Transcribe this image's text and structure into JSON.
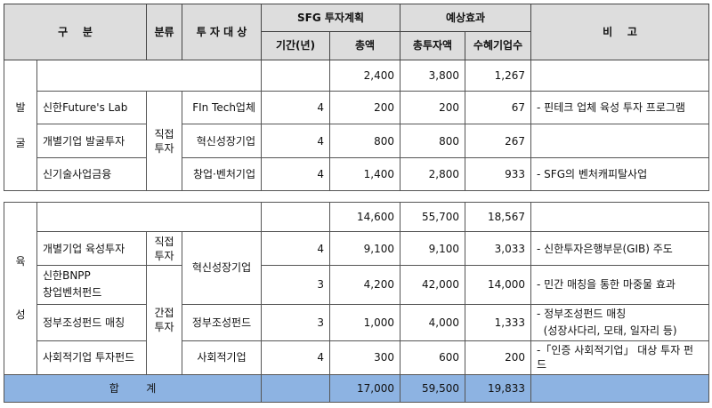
{
  "header": {
    "category": "구    분",
    "class": "분류",
    "target": "투 자 대 상",
    "plan": "SFG 투자계획",
    "effect": "예상효과",
    "note": "비    고",
    "period": "기간(년)",
    "total_amount": "총액",
    "total_invest": "총투자액",
    "beneficiaries": "수혜기업수"
  },
  "discover": {
    "section_chars": [
      "발",
      "굴"
    ],
    "subtotal": {
      "total_amount": "2,400",
      "total_invest": "3,800",
      "beneficiaries": "1,267"
    },
    "class_label": "직접\n투자",
    "rows": [
      {
        "name": "신한Future's Lab",
        "target": "FIn Tech업체",
        "period": "4",
        "amount": "200",
        "invest": "200",
        "benef": "67",
        "note": "- 핀테크 업체 육성 투자 프로그램"
      },
      {
        "name": "개별기업 발굴투자",
        "target": "혁신성장기업",
        "period": "4",
        "amount": "800",
        "invest": "800",
        "benef": "267",
        "note": ""
      },
      {
        "name": "신기술사업금융",
        "target": "창업·벤처기업",
        "period": "4",
        "amount": "1,400",
        "invest": "2,800",
        "benef": "933",
        "note": "- SFG의 벤처캐피탈사업"
      }
    ]
  },
  "nurture": {
    "section_chars": [
      "육",
      "성"
    ],
    "subtotal": {
      "total_amount": "14,600",
      "total_invest": "55,700",
      "beneficiaries": "18,567"
    },
    "class_direct": "직접\n투자",
    "class_indirect": "간접\n투자",
    "target_innov": "혁신성장기업",
    "rows": [
      {
        "name": "개별기업 육성투자",
        "period": "4",
        "amount": "9,100",
        "invest": "9,100",
        "benef": "3,033",
        "note": "- 신한투자은행부문(GIB) 주도"
      },
      {
        "name": "신한BNPP\n창업벤처펀드",
        "period": "3",
        "amount": "4,200",
        "invest": "42,000",
        "benef": "14,000",
        "note": "- 민간 매칭을 통한 마중물 효과"
      },
      {
        "name": "정부조성펀드 매칭",
        "target": "정부조성펀드",
        "period": "3",
        "amount": "1,000",
        "invest": "4,000",
        "benef": "1,333",
        "note": "- 정부조성펀드 매칭\n  (성장사다리, 모태, 일자리 등)"
      },
      {
        "name": "사회적기업 투자펀드",
        "target": "사회적기업",
        "period": "4",
        "amount": "300",
        "invest": "600",
        "benef": "200",
        "note": "-「인증 사회적기업」 대상 투자 펀드"
      }
    ]
  },
  "total": {
    "label": "합        계",
    "total_amount": "17,000",
    "total_invest": "59,500",
    "beneficiaries": "19,833"
  }
}
